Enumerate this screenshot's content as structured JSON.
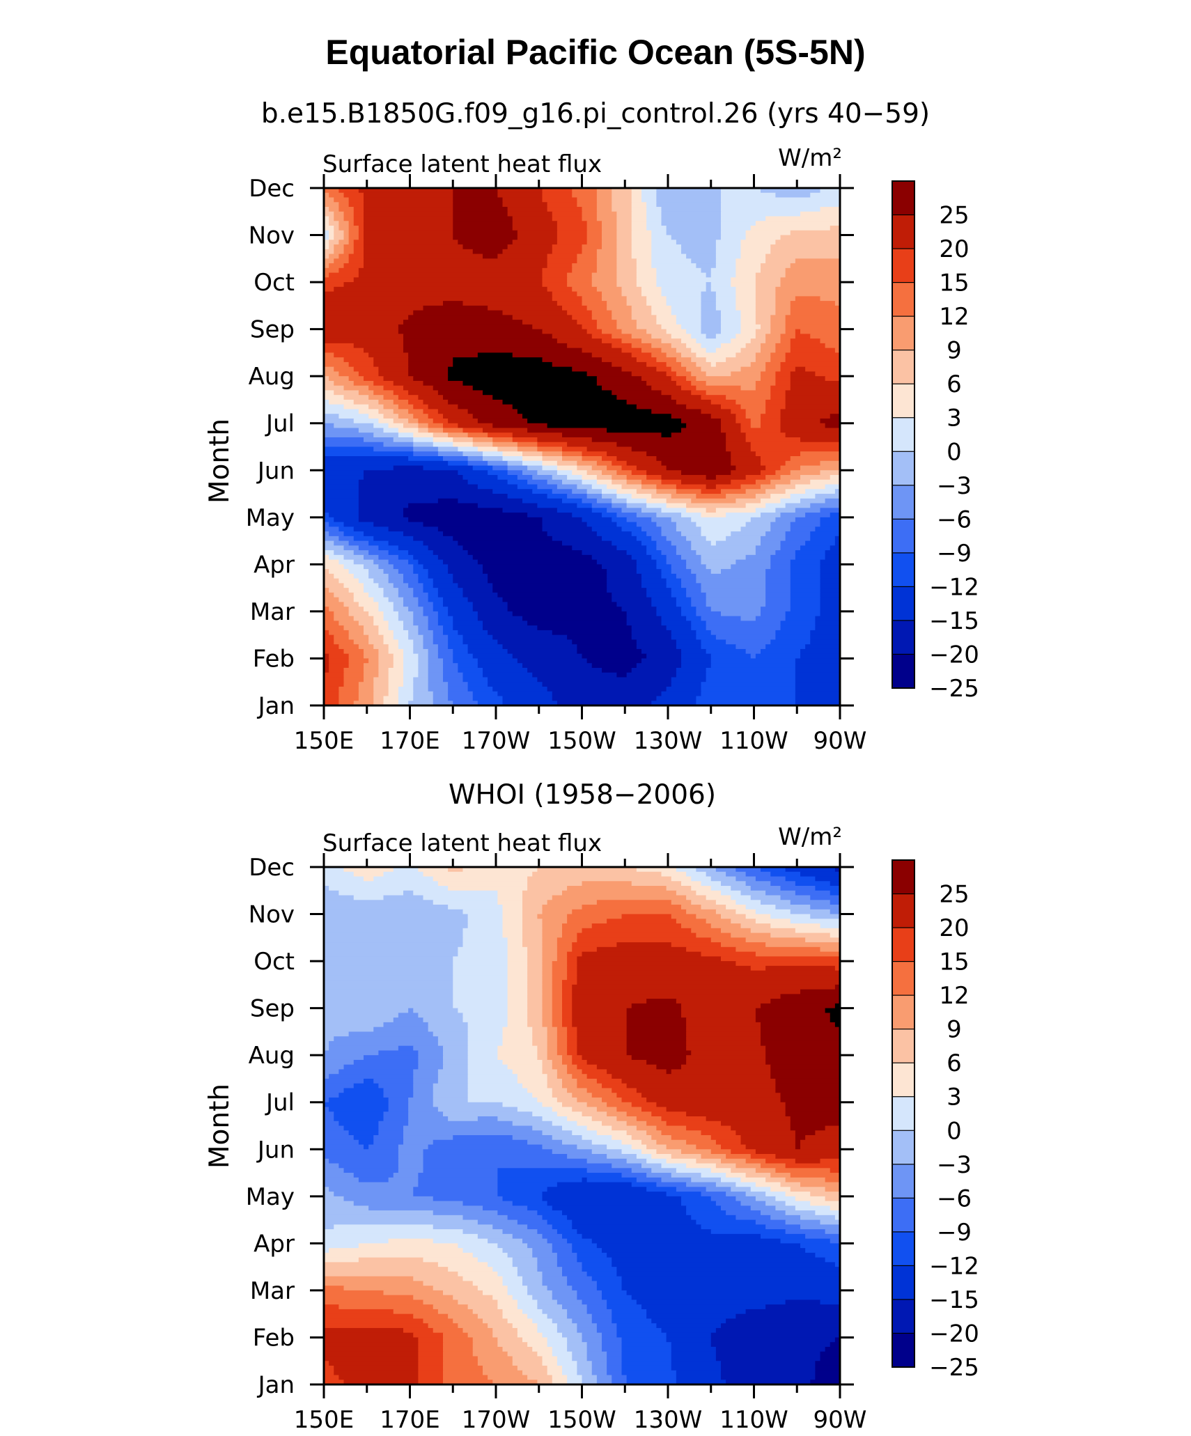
{
  "figure": {
    "title": "Equatorial Pacific Ocean (5S-5N)"
  },
  "colorbar": {
    "levels": [
      -25,
      -20,
      -15,
      -12,
      -9,
      -6,
      -3,
      0,
      3,
      6,
      9,
      12,
      15,
      20,
      25
    ],
    "labels": [
      "25",
      "20",
      "15",
      "12",
      "9",
      "6",
      "3",
      "0",
      "−3",
      "−6",
      "−9",
      "−12",
      "−15",
      "−20",
      "−25"
    ],
    "colors": [
      "#00008b",
      "#0018b3",
      "#0033d6",
      "#1150f0",
      "#3d6ef5",
      "#6e95f5",
      "#a3bff7",
      "#d5e6fc",
      "#fde5d3",
      "#fbc2a4",
      "#f99c70",
      "#f5703f",
      "#e83f18",
      "#c01d06",
      "#8b0000"
    ]
  },
  "chart_data": [
    {
      "type": "heatmap",
      "subtitle": "b.e15.B1850G.f09_g16.pi_control.26 (yrs 40−59)",
      "variable": "Surface latent heat flux",
      "units": "W/m²",
      "xlabel": "",
      "ylabel": "Month",
      "x": [
        "150E",
        "160E",
        "170E",
        "180",
        "170W",
        "160W",
        "150W",
        "140W",
        "130W",
        "120W",
        "110W",
        "100W",
        "90W"
      ],
      "xticklabels": [
        "150E",
        "170E",
        "170W",
        "150W",
        "130W",
        "110W",
        "90W"
      ],
      "yticklabels": [
        "Jan",
        "Feb",
        "Mar",
        "Apr",
        "May",
        "Jun",
        "Jul",
        "Aug",
        "Sep",
        "Oct",
        "Nov",
        "Dec"
      ],
      "values": [
        [
          14,
          7,
          -3,
          -9,
          -14,
          -18,
          -22,
          -22,
          -18,
          -13,
          -12,
          -15,
          -17
        ],
        [
          16,
          9,
          -1,
          -12,
          -18,
          -22,
          -25,
          -27,
          -23,
          -15,
          -12,
          -15,
          -17
        ],
        [
          10,
          3,
          -6,
          -16,
          -24,
          -27,
          -26,
          -25,
          -18,
          -9,
          -8,
          -13,
          -17
        ],
        [
          3,
          -4,
          -12,
          -22,
          -27,
          -27,
          -27,
          -23,
          -12,
          -5,
          -7,
          -13,
          -17
        ],
        [
          -14,
          -22,
          -26,
          -28,
          -28,
          -25,
          -20,
          -12,
          -6,
          0,
          -3,
          -9,
          -14
        ],
        [
          -18,
          -20,
          -22,
          -20,
          -13,
          -5,
          3,
          12,
          20,
          24,
          17,
          9,
          5
        ],
        [
          -6,
          -3,
          6,
          16,
          22,
          26,
          28,
          28,
          27,
          23,
          11,
          18,
          22
        ],
        [
          6,
          13,
          20,
          26,
          28,
          28,
          26,
          22,
          15,
          5,
          8,
          16,
          14
        ],
        [
          18,
          17,
          21,
          23,
          22,
          20,
          15,
          8,
          2,
          -5,
          2,
          12,
          10
        ],
        [
          14,
          16,
          18,
          18,
          17,
          15,
          10,
          5,
          -2,
          -3,
          3,
          8,
          8
        ],
        [
          -2,
          16,
          20,
          20,
          23,
          17,
          13,
          4,
          -3,
          -4,
          1,
          4,
          4
        ],
        [
          10,
          16,
          17,
          20,
          20,
          15,
          11,
          4,
          -6,
          -3,
          -3,
          -5,
          -2
        ]
      ]
    },
    {
      "type": "heatmap",
      "subtitle": "WHOI (1958−2006)",
      "variable": "Surface latent heat flux",
      "units": "W/m²",
      "xlabel": "",
      "ylabel": "Month",
      "x": [
        "150E",
        "160E",
        "170E",
        "180",
        "170W",
        "160W",
        "150W",
        "140W",
        "130W",
        "120W",
        "110W",
        "100W",
        "90W"
      ],
      "xticklabels": [
        "150E",
        "170E",
        "170W",
        "150W",
        "130W",
        "110W",
        "90W"
      ],
      "yticklabels": [
        "Jan",
        "Feb",
        "Mar",
        "Apr",
        "May",
        "Jun",
        "Jul",
        "Aug",
        "Sep",
        "Oct",
        "Nov",
        "Dec"
      ],
      "values": [
        [
          14,
          16,
          16,
          11,
          9,
          6,
          -3,
          -12,
          -14,
          -19,
          -22,
          -24,
          -27
        ],
        [
          16,
          17,
          16,
          11,
          6,
          1,
          -6,
          -13,
          -15,
          -20,
          -23,
          -24,
          -25
        ],
        [
          10,
          9,
          8,
          5,
          2,
          -5,
          -10,
          -15,
          -17,
          -18,
          -18,
          -19,
          -18
        ],
        [
          -2,
          0,
          1,
          0,
          -3,
          -7,
          -14,
          -17,
          -17,
          -16,
          -17,
          -15,
          -12
        ],
        [
          -5,
          -8,
          -9,
          -10,
          -12,
          -15,
          -20,
          -20,
          -16,
          -12,
          -6,
          1,
          5
        ],
        [
          -10,
          -12,
          -8,
          -11,
          -12,
          -10,
          -6,
          -2,
          6,
          10,
          16,
          20,
          18
        ],
        [
          -12,
          -15,
          -9,
          -3,
          -3,
          0,
          6,
          12,
          17,
          18,
          18,
          21,
          22
        ],
        [
          -6,
          -9,
          -10,
          -5,
          0,
          3,
          16,
          20,
          22,
          18,
          19,
          23,
          24
        ],
        [
          -5,
          -3,
          -6,
          -3,
          -2,
          5,
          18,
          20,
          21,
          18,
          20,
          23,
          26
        ],
        [
          -5,
          -5,
          -6,
          -3,
          -2,
          5,
          16,
          17,
          17,
          16,
          14,
          14,
          13
        ],
        [
          -6,
          -5,
          -5,
          -4,
          -1,
          6,
          10,
          12,
          12,
          7,
          1,
          -3,
          -6
        ],
        [
          -1,
          2,
          -1,
          4,
          1,
          3,
          4,
          3,
          1,
          -6,
          -12,
          -17,
          -21
        ]
      ]
    }
  ]
}
